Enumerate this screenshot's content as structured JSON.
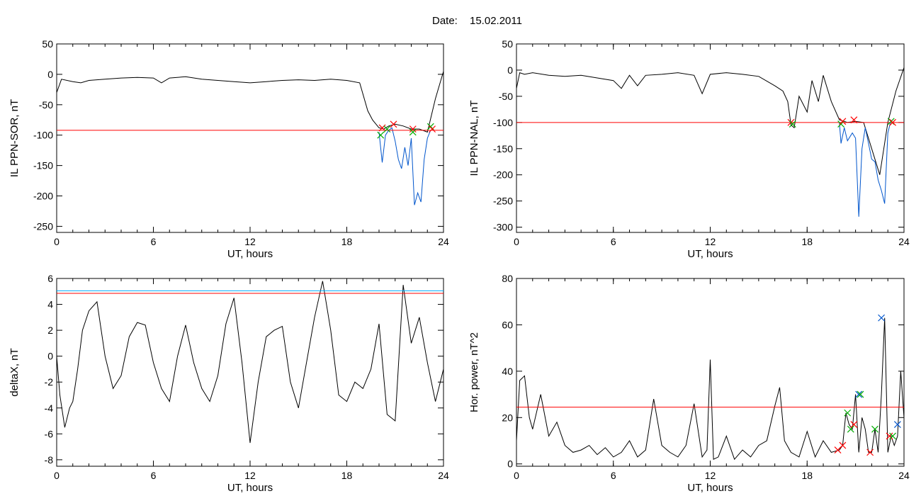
{
  "header": {
    "date_label": "Date:",
    "date_value": "15.02.2011"
  },
  "colors": {
    "trace": "#000000",
    "threshold": "#ff0000",
    "storm": "#0055cc",
    "onset_marker": "#00aa00",
    "end_marker": "#ff0000",
    "peak_marker": "#0055cc",
    "cyan_line": "#00aaff"
  },
  "chart_data": [
    {
      "id": "il-sor",
      "type": "line",
      "ylabel": "IL PPN-SOR, nT",
      "xlabel": "UT, hours",
      "xlim": [
        0,
        24
      ],
      "ylim": [
        -260,
        50
      ],
      "xticks": [
        0,
        6,
        12,
        18,
        24
      ],
      "yticks": [
        50,
        0,
        -50,
        -100,
        -150,
        -200,
        -250
      ],
      "threshold": -92,
      "series": [
        {
          "role": "trace",
          "x": [
            0,
            0.3,
            1,
            1.5,
            2,
            3,
            4,
            5,
            6,
            6.5,
            7,
            8,
            9,
            10,
            11,
            12,
            13,
            14,
            15,
            16,
            17,
            18,
            18.8,
            19.3,
            19.6,
            20,
            20.3,
            20.6,
            21,
            21.5,
            22,
            22.5,
            23,
            23.5,
            24
          ],
          "y": [
            -30,
            -8,
            -12,
            -14,
            -10,
            -8,
            -6,
            -5,
            -6,
            -14,
            -6,
            -4,
            -8,
            -10,
            -12,
            -14,
            -12,
            -10,
            -9,
            -10,
            -8,
            -10,
            -14,
            -60,
            -75,
            -88,
            -90,
            -85,
            -82,
            -85,
            -90,
            -90,
            -95,
            -40,
            5
          ]
        },
        {
          "role": "storm",
          "x": [
            20,
            20.2,
            20.4,
            20.6,
            20.8,
            21,
            21.2,
            21.4,
            21.6,
            21.8,
            22,
            22.2,
            22.4,
            22.6,
            22.8,
            23,
            23.2
          ],
          "y": [
            -95,
            -145,
            -100,
            -92,
            -88,
            -110,
            -140,
            -155,
            -120,
            -150,
            -105,
            -215,
            -195,
            -210,
            -140,
            -105,
            -92
          ]
        }
      ],
      "markers": [
        {
          "kind": "onset",
          "x": 20.1,
          "y": -100
        },
        {
          "kind": "end",
          "x": 20.2,
          "y": -88
        },
        {
          "kind": "onset",
          "x": 20.5,
          "y": -90
        },
        {
          "kind": "end",
          "x": 20.9,
          "y": -82
        },
        {
          "kind": "end",
          "x": 22.1,
          "y": -90
        },
        {
          "kind": "onset",
          "x": 22.1,
          "y": -95
        },
        {
          "kind": "onset",
          "x": 23.2,
          "y": -86
        },
        {
          "kind": "end",
          "x": 23.3,
          "y": -90
        }
      ]
    },
    {
      "id": "il-nal",
      "type": "line",
      "ylabel": "IL PPN-NAL, nT",
      "xlabel": "UT, hours",
      "xlim": [
        0,
        24
      ],
      "ylim": [
        -310,
        50
      ],
      "xticks": [
        0,
        6,
        12,
        18,
        24
      ],
      "yticks": [
        50,
        0,
        -50,
        -100,
        -150,
        -200,
        -250,
        -300
      ],
      "threshold": -100,
      "series": [
        {
          "role": "trace",
          "x": [
            0,
            0.2,
            0.5,
            1,
            2,
            3,
            4,
            5,
            6,
            6.5,
            7,
            7.5,
            8,
            9,
            10,
            11,
            11.5,
            12,
            13,
            14,
            15,
            16,
            16.5,
            16.8,
            17,
            17.2,
            17.5,
            18,
            18.3,
            18.7,
            19,
            19.5,
            20,
            20.5,
            21,
            21.5,
            22,
            22.5,
            23,
            23.5,
            24
          ],
          "y": [
            -35,
            -5,
            -8,
            -5,
            -10,
            -12,
            -10,
            -15,
            -20,
            -35,
            -10,
            -30,
            -10,
            -8,
            -5,
            -10,
            -45,
            -8,
            -5,
            -8,
            -12,
            -30,
            -40,
            -60,
            -105,
            -110,
            -50,
            -80,
            -20,
            -60,
            -10,
            -60,
            -95,
            -100,
            -98,
            -100,
            -150,
            -200,
            -100,
            -40,
            5
          ]
        },
        {
          "role": "storm",
          "x": [
            20,
            20.1,
            20.3,
            20.5,
            20.8,
            21,
            21.2,
            21.4,
            21.6,
            21.8,
            22,
            22.2,
            22.4,
            22.6,
            22.8,
            23,
            23.2
          ],
          "y": [
            -100,
            -140,
            -110,
            -135,
            -120,
            -130,
            -280,
            -150,
            -110,
            -140,
            -170,
            -175,
            -210,
            -230,
            -255,
            -120,
            -95
          ]
        }
      ],
      "markers": [
        {
          "kind": "end",
          "x": 17.0,
          "y": -100
        },
        {
          "kind": "onset",
          "x": 17.1,
          "y": -103
        },
        {
          "kind": "onset",
          "x": 20.1,
          "y": -103
        },
        {
          "kind": "end",
          "x": 20.2,
          "y": -98
        },
        {
          "kind": "end",
          "x": 20.9,
          "y": -95
        },
        {
          "kind": "onset",
          "x": 23.2,
          "y": -98
        },
        {
          "kind": "end",
          "x": 23.3,
          "y": -100
        }
      ]
    },
    {
      "id": "deltax",
      "type": "line",
      "ylabel": "deltaX, nT",
      "xlabel": "UT, hours",
      "xlim": [
        0,
        24
      ],
      "ylim": [
        -8.5,
        6
      ],
      "xticks": [
        0,
        6,
        12,
        18,
        24
      ],
      "yticks": [
        6,
        4,
        2,
        0,
        -2,
        -4,
        -6,
        -8
      ],
      "threshold": 4.85,
      "cyan_level": 5.05,
      "series": [
        {
          "role": "trace",
          "x": [
            0,
            0.2,
            0.5,
            0.8,
            1,
            1.3,
            1.6,
            2,
            2.5,
            3,
            3.5,
            4,
            4.5,
            5,
            5.5,
            6,
            6.5,
            7,
            7.5,
            8,
            8.5,
            9,
            9.5,
            10,
            10.5,
            11,
            11.5,
            12,
            12.5,
            13,
            13.5,
            14,
            14.5,
            15,
            15.5,
            16,
            16.5,
            17,
            17.5,
            18,
            18.5,
            19,
            19.5,
            20,
            20.5,
            21,
            21.5,
            22,
            22.5,
            23,
            23.5,
            24
          ],
          "y": [
            0,
            -3,
            -5.5,
            -4,
            -3.5,
            -1,
            2,
            3.5,
            4.2,
            0,
            -2.5,
            -1.5,
            1.5,
            2.6,
            2.4,
            -0.5,
            -2.5,
            -3.5,
            0,
            2.4,
            -0.5,
            -2.5,
            -3.5,
            -1.5,
            2.5,
            4.5,
            -0.5,
            -6.7,
            -2,
            1.5,
            2,
            2.3,
            -2,
            -4,
            -0.5,
            3,
            5.8,
            2,
            -3,
            -3.5,
            -2,
            -2.5,
            -1,
            2.5,
            -4.5,
            -5,
            5.5,
            1,
            3,
            -0.5,
            -3.5,
            -1
          ]
        }
      ],
      "markers": []
    },
    {
      "id": "hor-power",
      "type": "line",
      "ylabel": "Hor. power, nT^2",
      "xlabel": "UT, hours",
      "xlim": [
        0,
        24
      ],
      "ylim": [
        -1,
        80
      ],
      "xticks": [
        0,
        6,
        12,
        18,
        24
      ],
      "yticks": [
        80,
        60,
        40,
        20,
        0
      ],
      "threshold": 24.5,
      "series": [
        {
          "role": "trace",
          "x": [
            0,
            0.2,
            0.5,
            0.8,
            1,
            1.5,
            2,
            2.5,
            3,
            3.5,
            4,
            4.5,
            5,
            5.5,
            6,
            6.5,
            7,
            7.5,
            8,
            8.5,
            9,
            9.5,
            10,
            10.5,
            11,
            11.5,
            11.8,
            12,
            12.2,
            12.5,
            13,
            13.5,
            14,
            14.5,
            15,
            15.5,
            16,
            16.3,
            16.6,
            17,
            17.5,
            18,
            18.5,
            19,
            19.5,
            20,
            20.2,
            20.4,
            20.6,
            20.8,
            21,
            21.2,
            21.4,
            21.6,
            21.8,
            22,
            22.2,
            22.4,
            22.6,
            22.8,
            23,
            23.2,
            23.4,
            23.6,
            23.8,
            24
          ],
          "y": [
            10,
            36,
            38,
            20,
            15,
            30,
            12,
            18,
            8,
            5,
            6,
            8,
            4,
            7,
            3,
            5,
            10,
            3,
            6,
            28,
            8,
            5,
            3,
            8,
            26,
            3,
            6,
            45,
            2,
            3,
            12,
            2,
            6,
            3,
            8,
            10,
            25,
            33,
            10,
            5,
            3,
            14,
            3,
            10,
            5,
            6,
            8,
            22,
            17,
            15,
            30,
            5,
            20,
            15,
            5,
            5,
            15,
            5,
            30,
            63,
            5,
            12,
            8,
            12,
            40,
            20
          ]
        }
      ],
      "markers": [
        {
          "kind": "onset",
          "x": 20.5,
          "y": 22
        },
        {
          "kind": "end",
          "x": 20.2,
          "y": 8
        },
        {
          "kind": "end",
          "x": 19.9,
          "y": 6
        },
        {
          "kind": "onset",
          "x": 20.7,
          "y": 15
        },
        {
          "kind": "end",
          "x": 20.9,
          "y": 17
        },
        {
          "kind": "peak",
          "x": 21.2,
          "y": 30
        },
        {
          "kind": "onset",
          "x": 21.3,
          "y": 30
        },
        {
          "kind": "onset",
          "x": 22.2,
          "y": 15
        },
        {
          "kind": "end",
          "x": 21.9,
          "y": 5
        },
        {
          "kind": "peak",
          "x": 22.6,
          "y": 63
        },
        {
          "kind": "end",
          "x": 23.1,
          "y": 12
        },
        {
          "kind": "onset",
          "x": 23.3,
          "y": 12
        },
        {
          "kind": "peak",
          "x": 23.6,
          "y": 17
        }
      ]
    }
  ]
}
